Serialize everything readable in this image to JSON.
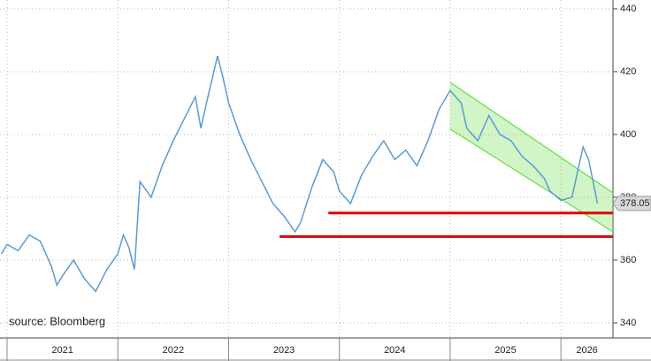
{
  "chart_data": {
    "type": "line",
    "source": "source: Bloomberg",
    "x": [
      2020.95,
      2021.0,
      2021.1,
      2021.2,
      2021.3,
      2021.4,
      2021.45,
      2021.5,
      2021.6,
      2021.7,
      2021.8,
      2021.9,
      2022.0,
      2022.05,
      2022.1,
      2022.15,
      2022.2,
      2022.3,
      2022.4,
      2022.5,
      2022.6,
      2022.7,
      2022.75,
      2022.8,
      2022.9,
      2022.95,
      2023.0,
      2023.1,
      2023.2,
      2023.3,
      2023.4,
      2023.5,
      2023.6,
      2023.65,
      2023.75,
      2023.85,
      2023.95,
      2024.0,
      2024.1,
      2024.2,
      2024.3,
      2024.4,
      2024.5,
      2024.6,
      2024.7,
      2024.8,
      2024.9,
      2025.0,
      2025.1,
      2025.15,
      2025.25,
      2025.35,
      2025.45,
      2025.55,
      2025.65,
      2025.75,
      2025.85,
      2025.9,
      2026.0,
      2026.1,
      2026.2,
      2026.25,
      2026.33
    ],
    "values": [
      362,
      365,
      363,
      368,
      366,
      358,
      352,
      355,
      360,
      354,
      350,
      357,
      362,
      368,
      364,
      357,
      385,
      380,
      390,
      398,
      405,
      412,
      402,
      410,
      425,
      418,
      410,
      400,
      392,
      385,
      378,
      374,
      369,
      372,
      383,
      392,
      388,
      382,
      378,
      387,
      393,
      398,
      392,
      395,
      390,
      398,
      408,
      414,
      410,
      402,
      398,
      406,
      400,
      398,
      393,
      390,
      386,
      382,
      379,
      380,
      396,
      392,
      378.05
    ],
    "color": "#5b9bd5",
    "year_labels": [
      "2021",
      "2022",
      "2023",
      "2024",
      "2025",
      "2026"
    ],
    "xlim": [
      2020.936,
      2026.47
    ],
    "ylim": [
      335.2,
      442.8
    ],
    "yticks": [
      340,
      360,
      380,
      400,
      420,
      440
    ],
    "channel": {
      "color": "#66dd44",
      "upper": [
        [
          2025.0,
          416.6
        ],
        [
          2026.47,
          381.4
        ]
      ],
      "lower": [
        [
          2025.0,
          401.7
        ],
        [
          2026.47,
          369
        ]
      ]
    },
    "support_lines": [
      {
        "from": 2023.9,
        "value": 375,
        "color": "#e00000"
      },
      {
        "from": 2023.46,
        "value": 367.5,
        "color": "#e00000"
      }
    ],
    "grid": true
  }
}
